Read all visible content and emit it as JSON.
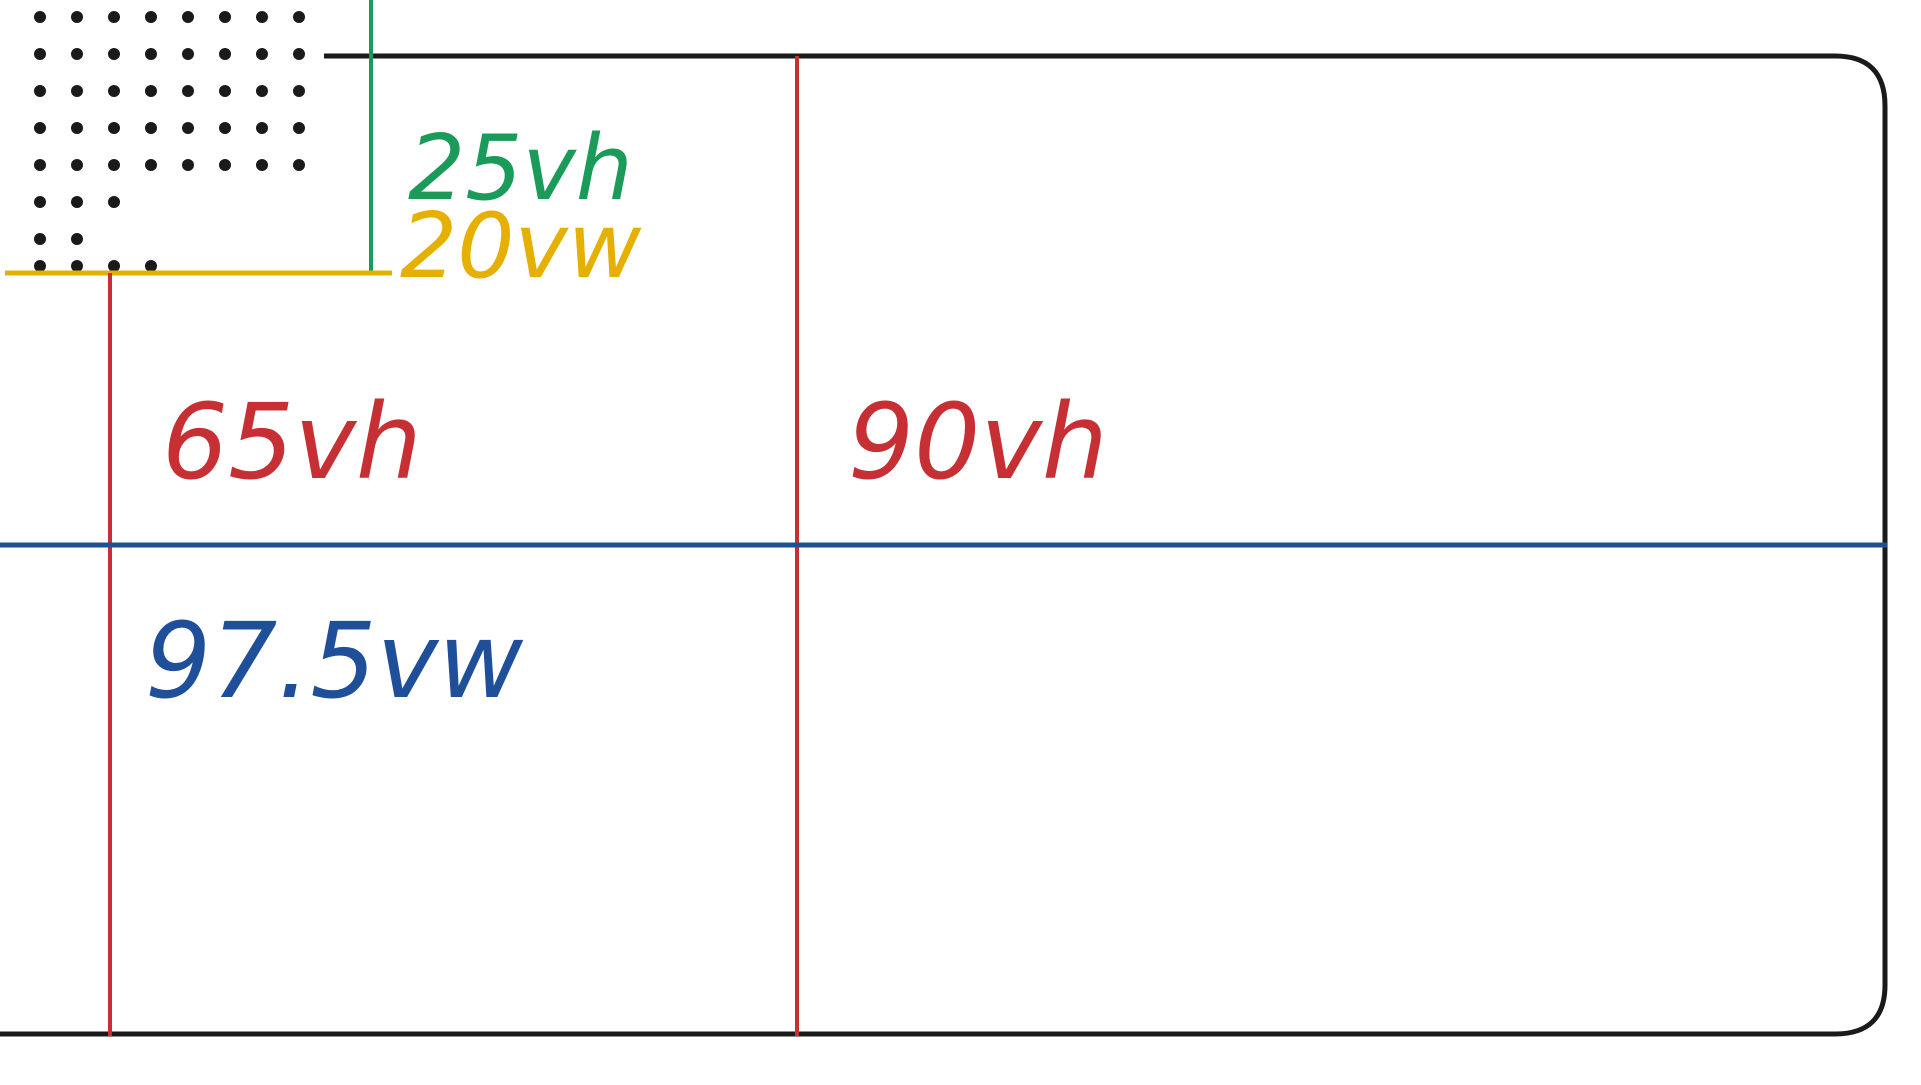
{
  "colors": {
    "frame": "#1a1a1a",
    "dots": "#1a1a1a",
    "green": "#1a9b5a",
    "yellow": "#e6b000",
    "red": "#c62f33",
    "blue": "#1f4f99"
  },
  "labels": {
    "green": "25vh",
    "yellow": "20vw",
    "red_left": "65vh",
    "red_right": "90vh",
    "blue": "97.5vw"
  }
}
